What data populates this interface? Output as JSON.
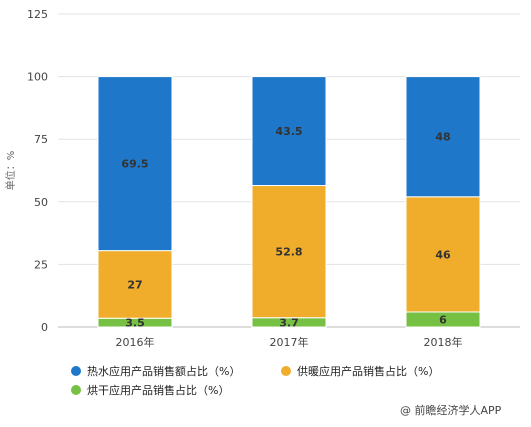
{
  "chart_data": {
    "type": "bar",
    "stacked": true,
    "categories": [
      "2016年",
      "2017年",
      "2018年"
    ],
    "series": [
      {
        "name": "烘干应用产品销售占比（%）",
        "values": [
          3.5,
          3.7,
          6
        ],
        "color": "#76c043"
      },
      {
        "name": "供暖应用产品销售占比（%）",
        "values": [
          27,
          52.8,
          46
        ],
        "color": "#f0ad2b"
      },
      {
        "name": "热水应用产品销售额占比（%）",
        "values": [
          69.5,
          43.5,
          48
        ],
        "color": "#1f77c9"
      }
    ],
    "ylabel": "单位：%",
    "ylim": [
      0,
      125
    ],
    "yticks": [
      0,
      25,
      50,
      75,
      100,
      125
    ],
    "grid": true,
    "legend_position": "bottom-left",
    "legend_order": [
      2,
      1,
      0
    ]
  },
  "source_text": "@ 前瞻经济学人APP"
}
